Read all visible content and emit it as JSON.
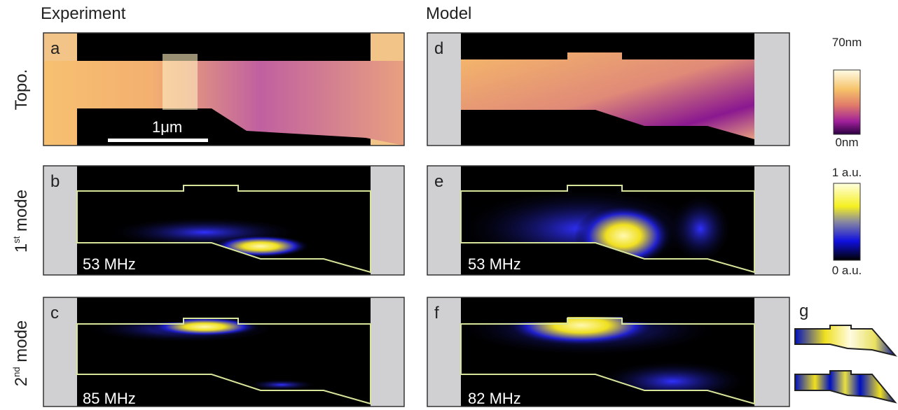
{
  "columns": [
    "Experiment",
    "Model"
  ],
  "rows": [
    {
      "text": "Topo."
    },
    {
      "main": "1",
      "sup": "st",
      "rest": " mode"
    },
    {
      "main": "2",
      "sup": "nd",
      "rest": " mode"
    }
  ],
  "panels": {
    "a": {
      "letter": "a",
      "scale": "1μm"
    },
    "b": {
      "letter": "b",
      "freq": "53 MHz"
    },
    "c": {
      "letter": "c",
      "freq": "85 MHz"
    },
    "d": {
      "letter": "d"
    },
    "e": {
      "letter": "e",
      "freq": "53 MHz"
    },
    "f": {
      "letter": "f",
      "freq": "82 MHz"
    },
    "g": {
      "letter": "g"
    }
  },
  "colorbars": [
    {
      "top": "70nm",
      "bottom": "0nm"
    },
    {
      "top": "1 a.u.",
      "bottom": "0 a.u."
    }
  ]
}
